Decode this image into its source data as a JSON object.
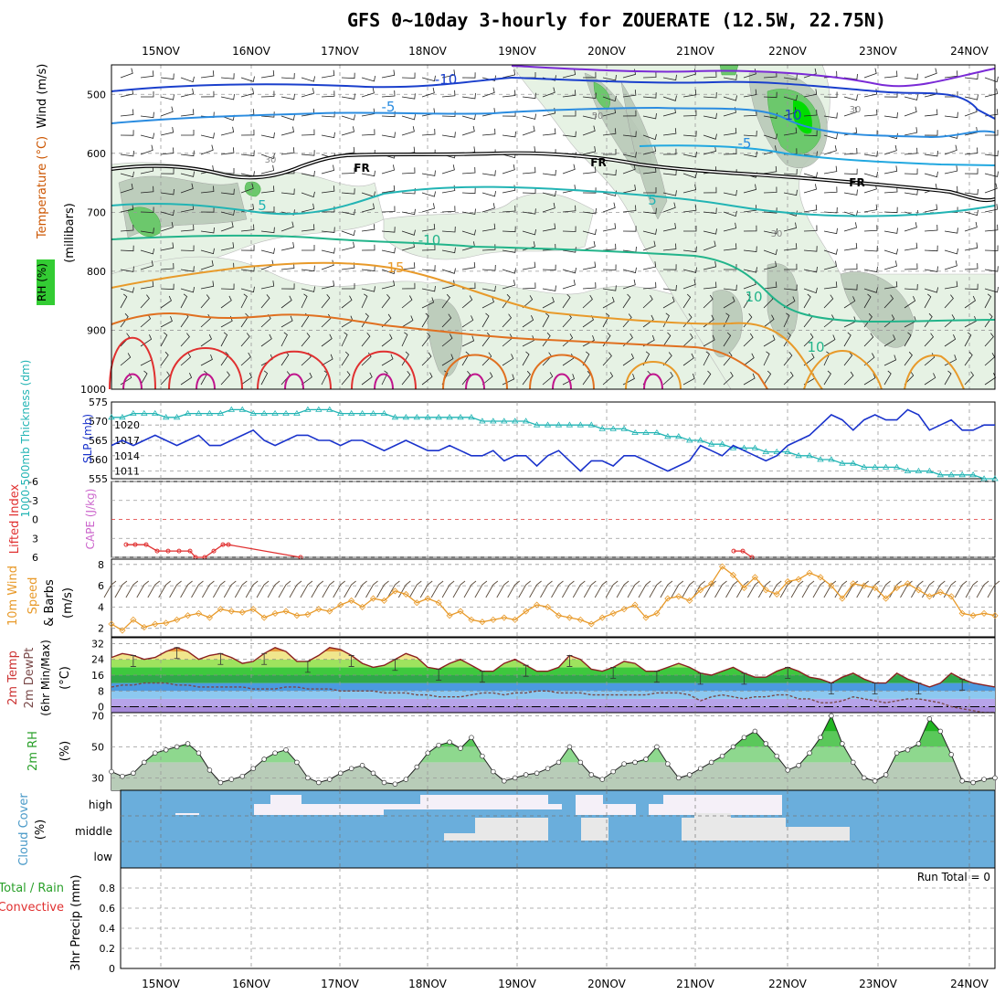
{
  "title": "GFS 0~10day 3-hourly for ZOUERATE (12.5W, 22.75N)",
  "days": [
    "15NOV",
    "16NOV",
    "17NOV",
    "18NOV",
    "19NOV",
    "20NOV",
    "21NOV",
    "22NOV",
    "23NOV",
    "24NOV"
  ],
  "colors": {
    "grid": "#999999",
    "slp": "#1a33cc",
    "thickness": "#22b4b4",
    "li": "#e03030",
    "wind": "#e89a2a",
    "temp": "#8b2020",
    "dew": "#7a4a4a",
    "rh": "#2aa02a",
    "cloud": "#6aaedc",
    "cloudMask": "#f5f0f8"
  },
  "chart_data": [
    {
      "type": "contour",
      "id": "upper",
      "ylabel": "(millibars)",
      "yaxis_labels": [
        "Wind (m/s)",
        "Temperature (°C)",
        "RH (%)"
      ],
      "yticks": [
        500,
        600,
        700,
        800,
        900,
        1000
      ],
      "ylim": [
        1000,
        450
      ],
      "contour_labels": [
        "-10",
        "-5",
        "FR",
        "5",
        "-10",
        "15",
        "10",
        "-5",
        "FR",
        "5",
        "10",
        "FR",
        "10",
        "30",
        "50",
        "30",
        "30"
      ]
    },
    {
      "type": "line",
      "id": "thickness_slp",
      "ylabel_left": "1000-500mb Thickness (dm)",
      "ylabel_right": "SLP (mb)",
      "left_ticks": [
        555,
        560,
        565,
        570,
        575
      ],
      "right_ticks": [
        1011,
        1014,
        1017,
        1020
      ],
      "slp_ylim": [
        1009.5,
        1024.5
      ],
      "thick_ylim": [
        555,
        575
      ],
      "series": [
        {
          "name": "Thickness",
          "axis": "left",
          "values": [
            571,
            571,
            572,
            572,
            572,
            571,
            571,
            572,
            572,
            572,
            572,
            573,
            573,
            572,
            572,
            572,
            572,
            572,
            573,
            573,
            573,
            572,
            572,
            572,
            572,
            572,
            571,
            571,
            571,
            571,
            571,
            571,
            571,
            571,
            570,
            570,
            570,
            570,
            570,
            569,
            569,
            569,
            569,
            569,
            569,
            568,
            568,
            568,
            567,
            567,
            567,
            566,
            566,
            565,
            565,
            564,
            564,
            563,
            563,
            563,
            562,
            562,
            562,
            561,
            561,
            560,
            560,
            559,
            559,
            558,
            558,
            558,
            558,
            557,
            557,
            557,
            556,
            556,
            556,
            556,
            555,
            555
          ]
        },
        {
          "name": "SLP",
          "axis": "right",
          "values": [
            1016,
            1017,
            1016,
            1017,
            1018,
            1017,
            1016,
            1017,
            1018,
            1016,
            1016,
            1017,
            1018,
            1019,
            1017,
            1016,
            1017,
            1018,
            1018,
            1017,
            1017,
            1016,
            1017,
            1017,
            1016,
            1015,
            1016,
            1017,
            1016,
            1015,
            1015,
            1016,
            1015,
            1014,
            1014,
            1015,
            1013,
            1014,
            1014,
            1012,
            1014,
            1015,
            1013,
            1011,
            1013,
            1013,
            1012,
            1014,
            1014,
            1013,
            1012,
            1011,
            1012,
            1013,
            1016,
            1015,
            1014,
            1016,
            1015,
            1014,
            1013,
            1014,
            1016,
            1017,
            1018,
            1020,
            1022,
            1021,
            1019,
            1021,
            1022,
            1021,
            1021,
            1023,
            1022,
            1019,
            1020,
            1021,
            1019,
            1019,
            1020,
            1020
          ]
        }
      ]
    },
    {
      "type": "line",
      "id": "cape_li",
      "ylabel_left": "Lifted Index",
      "ylabel_right": "CAPE (J/kg)",
      "yticks": [
        -6,
        -3,
        0,
        3,
        6
      ],
      "ylim": [
        6,
        -6
      ],
      "series": [
        {
          "name": "Lifted Index",
          "values": [
            null,
            4,
            4,
            4,
            5,
            5,
            5,
            5,
            6,
            6,
            5,
            4,
            4,
            6,
            null,
            null,
            null,
            null,
            null,
            null,
            5,
            5,
            6
          ]
        }
      ]
    },
    {
      "type": "line",
      "id": "wind10m",
      "ylabel": "10m Wind Speed & Barbs (m/s)",
      "yticks": [
        2,
        4,
        6,
        8
      ],
      "ylim": [
        1.2,
        8.5
      ],
      "series": [
        {
          "name": "Wind speed",
          "values": [
            2.4,
            1.8,
            2.8,
            2.1,
            2.4,
            2.5,
            2.8,
            3.2,
            3.4,
            3.0,
            3.8,
            3.6,
            3.5,
            3.8,
            3.0,
            3.4,
            3.6,
            3.2,
            3.3,
            3.8,
            3.6,
            4.2,
            4.6,
            4.0,
            4.8,
            4.6,
            5.5,
            5.2,
            4.4,
            4.8,
            4.4,
            3.2,
            3.6,
            2.8,
            2.6,
            2.8,
            3.0,
            2.8,
            3.6,
            4.2,
            4.0,
            3.2,
            3.0,
            2.8,
            2.4,
            3.0,
            3.4,
            3.8,
            4.2,
            3.0,
            3.4,
            4.8,
            5.0,
            4.6,
            5.6,
            6.2,
            7.8,
            7.0,
            5.8,
            6.8,
            5.6,
            5.2,
            6.4,
            6.6,
            7.2,
            6.8,
            6.0,
            4.8,
            6.2,
            6.0,
            5.8,
            4.8,
            5.8,
            6.2,
            5.6,
            5.0,
            5.4,
            5.0,
            3.4,
            3.2,
            3.4,
            3.2
          ]
        }
      ]
    },
    {
      "type": "area",
      "id": "temp",
      "ylabel": "2m Temp 2m DewPt (6hr Min/Max) (°C)",
      "yticks": [
        0,
        8,
        16,
        24,
        32
      ],
      "ylim": [
        -3,
        35
      ],
      "series": [
        {
          "name": "Temp",
          "values": [
            25,
            27,
            26,
            24,
            25,
            28,
            30,
            28,
            24,
            26,
            27,
            25,
            22,
            23,
            27,
            30,
            28,
            23,
            23,
            26,
            30,
            29,
            26,
            22,
            20,
            21,
            24,
            27,
            25,
            20,
            19,
            22,
            24,
            21,
            18,
            18,
            22,
            24,
            21,
            18,
            18,
            20,
            26,
            24,
            19,
            18,
            20,
            23,
            22,
            18,
            18,
            20,
            22,
            20,
            17,
            16,
            18,
            20,
            17,
            15,
            15,
            18,
            20,
            18,
            15,
            14,
            12,
            15,
            17,
            14,
            12,
            12,
            17,
            14,
            12,
            10,
            12,
            17,
            14,
            12,
            11,
            10
          ]
        },
        {
          "name": "DewPt",
          "values": [
            10,
            11,
            11,
            12,
            12,
            12,
            11,
            11,
            10,
            10,
            10,
            10,
            10,
            9,
            9,
            9,
            10,
            10,
            9,
            9,
            9,
            8,
            8,
            8,
            8,
            7,
            7,
            7,
            6,
            6,
            5,
            5,
            5,
            6,
            7,
            7,
            6,
            7,
            7,
            8,
            8,
            7,
            7,
            7,
            6,
            6,
            6,
            6,
            6,
            6,
            7,
            7,
            7,
            6,
            3,
            5,
            6,
            5,
            4,
            5,
            5,
            6,
            6,
            4,
            4,
            2,
            2,
            3,
            5,
            4,
            3,
            2,
            3,
            4,
            4,
            3,
            2,
            0,
            -1,
            -2,
            -3,
            -3
          ]
        }
      ]
    },
    {
      "type": "area",
      "id": "rh",
      "ylabel": "2m RH (%)",
      "yticks": [
        30,
        50,
        70
      ],
      "ylim": [
        22,
        72
      ],
      "series": [
        {
          "name": "RH",
          "values": [
            34,
            31,
            33,
            40,
            46,
            48,
            50,
            52,
            46,
            35,
            27,
            29,
            31,
            36,
            42,
            46,
            48,
            40,
            30,
            27,
            29,
            33,
            36,
            38,
            33,
            27,
            26,
            29,
            37,
            46,
            51,
            53,
            49,
            56,
            44,
            34,
            28,
            30,
            32,
            33,
            36,
            40,
            50,
            40,
            32,
            29,
            34,
            39,
            40,
            42,
            50,
            39,
            30,
            32,
            36,
            40,
            44,
            50,
            56,
            60,
            52,
            44,
            35,
            38,
            46,
            56,
            70,
            52,
            40,
            30,
            28,
            32,
            46,
            48,
            52,
            68,
            60,
            45,
            28,
            27,
            29,
            30
          ]
        }
      ]
    },
    {
      "type": "heatmap",
      "id": "cloud",
      "ylabel": "Cloud Cover (%)",
      "rows": [
        "high",
        "middle",
        "low"
      ]
    },
    {
      "type": "bar",
      "id": "precip",
      "ylabel": "3hr Precip (mm)",
      "legend": [
        "Total / Rain",
        "Convective"
      ],
      "run_total": "Run Total = 0",
      "yticks": [
        0,
        0.2,
        0.4,
        0.6,
        0.8
      ],
      "ylim": [
        0,
        1
      ],
      "values": []
    }
  ]
}
